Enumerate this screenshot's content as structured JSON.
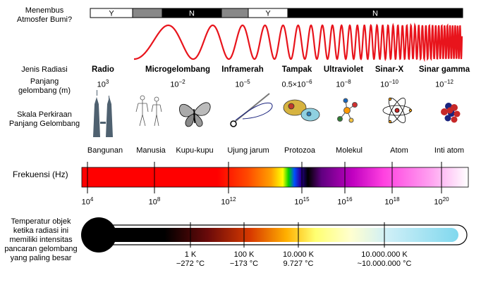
{
  "atmosphere": {
    "label_line1": "Menembus",
    "label_line2": "Atmosfer Bumi?",
    "segments": [
      {
        "text": "Y",
        "kind": "yes"
      },
      {
        "text": "",
        "kind": "partial"
      },
      {
        "text": "N",
        "kind": "no"
      },
      {
        "text": "",
        "kind": "partial"
      },
      {
        "text": "Y",
        "kind": "yes"
      },
      {
        "text": "N",
        "kind": "no"
      }
    ]
  },
  "radiation": {
    "type_label": "Jenis Radiasi",
    "wavelength_label_line1": "Panjang",
    "wavelength_label_line2": "gelombang (m)",
    "types": [
      {
        "name": "Radio",
        "wavelength": "10^3"
      },
      {
        "name": "Microgelombang",
        "wavelength": "10^−2"
      },
      {
        "name": "Inframerah",
        "wavelength": "10^−5"
      },
      {
        "name": "Tampak",
        "wavelength": "0.5×10^−6"
      },
      {
        "name": "Ultraviolet",
        "wavelength": "10^−8"
      },
      {
        "name": "Sinar-X",
        "wavelength": "10^−10"
      },
      {
        "name": "Sinar gamma",
        "wavelength": "10^−12"
      }
    ]
  },
  "scale": {
    "label_line1": "Skala Perkiraan",
    "label_line2": "Panjang Gelombang",
    "items": [
      {
        "name": "Bangunan",
        "icon": "towers-icon"
      },
      {
        "name": "Manusia",
        "icon": "humans-icon"
      },
      {
        "name": "Kupu-kupu",
        "icon": "butterfly-icon"
      },
      {
        "name": "Ujung jarum",
        "icon": "needle-icon"
      },
      {
        "name": "Protozoa",
        "icon": "protozoa-icon"
      },
      {
        "name": "Molekul",
        "icon": "molecule-icon"
      },
      {
        "name": "Atom",
        "icon": "atom-icon"
      },
      {
        "name": "Inti atom",
        "icon": "nucleus-icon"
      }
    ]
  },
  "frequency": {
    "label": "Frekuensi (Hz)",
    "ticks": [
      "10^4",
      "10^8",
      "10^12",
      "10^15",
      "10^16",
      "10^18",
      "10^20"
    ]
  },
  "temperature": {
    "label_lines": [
      "Temperatur objek",
      "ketika radiasi ini",
      "memiliki intensitas",
      "pancaran gelombang",
      "yang paling besar"
    ],
    "ticks": [
      {
        "kelvin": "1 K",
        "celsius": "−272 °C"
      },
      {
        "kelvin": "100 K",
        "celsius": "−173 °C"
      },
      {
        "kelvin": "10.000 K",
        "celsius": "9.727 °C"
      },
      {
        "kelvin": "10.000.000 K",
        "celsius": "~10.000.000 °C"
      }
    ]
  },
  "colors": {
    "wave": "#e8141c",
    "bar_no": "#000000",
    "bar_partial": "#888888",
    "bar_yes": "#ffffff"
  }
}
